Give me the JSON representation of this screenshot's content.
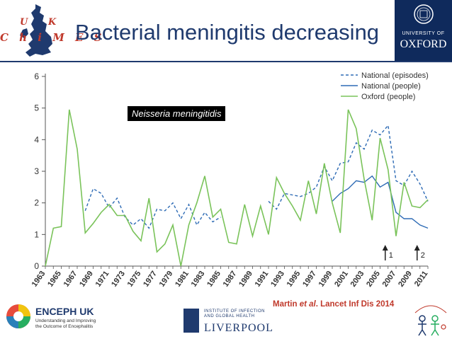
{
  "header": {
    "title": "Bacterial meningitis decreasing",
    "logo_uk": "U K",
    "logo_chimes": "C h i M E S",
    "oxford_university": "UNIVERSITY OF",
    "oxford_name": "OXFORD"
  },
  "annotation": {
    "species": "Neisseria meningitidis",
    "citation_prefix": "Martin ",
    "citation_etal": "et al",
    "citation_suffix": ". Lancet Inf Dis 2014"
  },
  "footer": {
    "enceph_name": "ENCEPH UK",
    "enceph_tagline": "Understanding and Improving the Outcome of Encephalitis",
    "liverpool_institute": "INSTITUTE OF INFECTION AND GLOBAL HEALTH",
    "liverpool_name": "LIVERPOOL",
    "oxford_vaccine_logo": "Oxford vaccine group"
  },
  "colors": {
    "title": "#1f3a6e",
    "national_episodes": "#2e6bb5",
    "national_people": "#2e6bb5",
    "oxford_people": "#7ac35a",
    "citation": "#c0392b"
  },
  "chart_data": {
    "type": "line",
    "ylim": [
      0,
      6
    ],
    "yticks": [
      0,
      1,
      2,
      3,
      4,
      5,
      6
    ],
    "xlim": [
      1963,
      2011
    ],
    "xticks": [
      1963,
      1965,
      1967,
      1969,
      1971,
      1973,
      1975,
      1977,
      1979,
      1981,
      1983,
      1985,
      1987,
      1989,
      1991,
      1993,
      1995,
      1997,
      1999,
      2001,
      2003,
      2005,
      2007,
      2009,
      2011
    ],
    "legend_position": "top-right",
    "markers": [
      {
        "x": 2006,
        "label": "1"
      },
      {
        "x": 2010,
        "label": "2"
      }
    ],
    "series": [
      {
        "name": "National (episodes)",
        "style": "dashed",
        "points": [
          [
            1968,
            1.75
          ],
          [
            1969,
            2.45
          ],
          [
            1970,
            2.3
          ],
          [
            1971,
            1.85
          ],
          [
            1972,
            2.15
          ],
          [
            1973,
            1.55
          ],
          [
            1974,
            1.3
          ],
          [
            1975,
            1.5
          ],
          [
            1976,
            1.2
          ],
          [
            1977,
            1.8
          ],
          [
            1978,
            1.75
          ],
          [
            1979,
            2.0
          ],
          [
            1980,
            1.5
          ],
          [
            1981,
            1.95
          ],
          [
            1982,
            1.3
          ],
          [
            1983,
            1.7
          ],
          [
            1984,
            1.4
          ],
          [
            1985,
            1.55
          ],
          [
            null,
            null
          ],
          [
            1991,
            2.05
          ],
          [
            1992,
            1.8
          ],
          [
            1993,
            2.3
          ],
          [
            1994,
            2.25
          ],
          [
            1995,
            2.2
          ],
          [
            1996,
            2.3
          ],
          [
            1997,
            2.5
          ],
          [
            1998,
            3.15
          ],
          [
            1999,
            2.7
          ],
          [
            2000,
            3.25
          ],
          [
            2001,
            3.3
          ],
          [
            2002,
            3.9
          ],
          [
            2003,
            3.7
          ],
          [
            2004,
            4.3
          ],
          [
            2005,
            4.15
          ],
          [
            2006,
            4.45
          ],
          [
            2007,
            2.7
          ],
          [
            2008,
            2.55
          ],
          [
            2009,
            3.0
          ],
          [
            2010,
            2.6
          ],
          [
            2011,
            2.05
          ]
        ]
      },
      {
        "name": "National (people)",
        "style": "solid",
        "points": [
          [
            1999,
            2.05
          ],
          [
            2000,
            2.3
          ],
          [
            2001,
            2.45
          ],
          [
            2002,
            2.7
          ],
          [
            2003,
            2.65
          ],
          [
            2004,
            2.85
          ],
          [
            2005,
            2.5
          ],
          [
            2006,
            2.65
          ],
          [
            2007,
            1.7
          ],
          [
            2008,
            1.5
          ],
          [
            2009,
            1.5
          ],
          [
            2010,
            1.3
          ],
          [
            2011,
            1.2
          ]
        ]
      },
      {
        "name": "Oxford (people)",
        "style": "solid",
        "points": [
          [
            1963,
            0
          ],
          [
            1964,
            1.2
          ],
          [
            1965,
            1.25
          ],
          [
            1966,
            4.95
          ],
          [
            1967,
            3.7
          ],
          [
            1968,
            1.05
          ],
          [
            1969,
            1.35
          ],
          [
            1970,
            1.7
          ],
          [
            1971,
            1.95
          ],
          [
            1972,
            1.6
          ],
          [
            1973,
            1.6
          ],
          [
            1974,
            1.1
          ],
          [
            1975,
            0.8
          ],
          [
            1976,
            2.15
          ],
          [
            1977,
            0.45
          ],
          [
            1978,
            0.7
          ],
          [
            1979,
            1.3
          ],
          [
            1980,
            0.0
          ],
          [
            1981,
            1.3
          ],
          [
            1982,
            2.0
          ],
          [
            1983,
            2.85
          ],
          [
            1984,
            1.55
          ],
          [
            1985,
            1.8
          ],
          [
            1986,
            0.75
          ],
          [
            1987,
            0.7
          ],
          [
            1988,
            1.95
          ],
          [
            1989,
            0.95
          ],
          [
            1990,
            1.9
          ],
          [
            1991,
            1.0
          ],
          [
            1992,
            2.8
          ],
          [
            1993,
            2.3
          ],
          [
            1994,
            1.9
          ],
          [
            1995,
            1.45
          ],
          [
            1996,
            2.7
          ],
          [
            1997,
            1.65
          ],
          [
            1998,
            3.25
          ],
          [
            1999,
            2.0
          ],
          [
            2000,
            1.05
          ],
          [
            2001,
            4.95
          ],
          [
            2002,
            4.35
          ],
          [
            2003,
            2.75
          ],
          [
            2004,
            1.45
          ],
          [
            2005,
            4.05
          ],
          [
            2006,
            3.05
          ],
          [
            2007,
            0.95
          ],
          [
            2008,
            2.65
          ],
          [
            2009,
            1.9
          ],
          [
            2010,
            1.85
          ],
          [
            2011,
            2.1
          ]
        ]
      }
    ]
  }
}
